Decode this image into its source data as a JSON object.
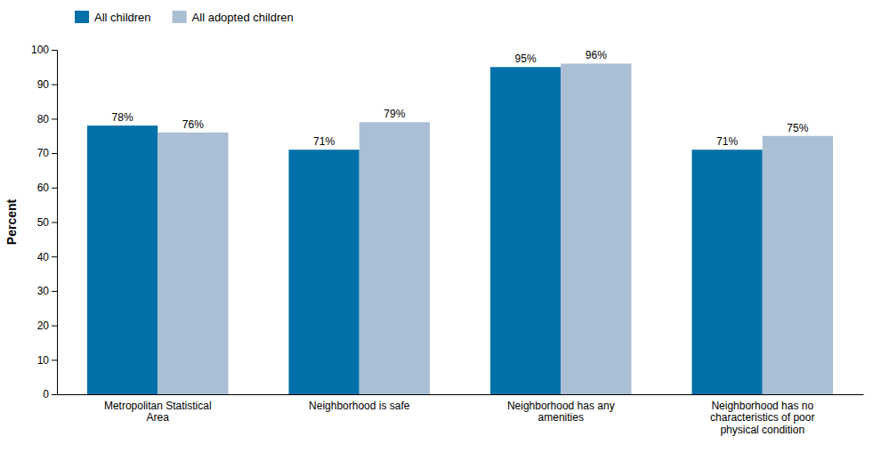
{
  "chart_data": {
    "type": "bar",
    "ylabel": "Percent",
    "categories": [
      "Metropolitan Statistical\nArea",
      "Neighborhood is safe",
      "Neighborhood has any\namenities",
      "Neighborhood has no\ncharacteristics of poor\nphysical condition"
    ],
    "series": [
      {
        "name": "All children",
        "color": "#0070A8",
        "values": [
          78,
          71,
          95,
          71
        ],
        "value_labels": [
          "78%",
          "71%",
          "95%",
          "71%"
        ]
      },
      {
        "name": "All adopted children",
        "color": "#AABFD4",
        "values": [
          76,
          79,
          96,
          75
        ],
        "value_labels": [
          "76%",
          "79%",
          "96%",
          "75%"
        ]
      }
    ],
    "ylim": [
      0,
      100
    ],
    "yticks": [
      0,
      10,
      20,
      30,
      40,
      50,
      60,
      70,
      80,
      90,
      100
    ],
    "grid": false,
    "legend": "upper-left",
    "data_labels": true
  }
}
